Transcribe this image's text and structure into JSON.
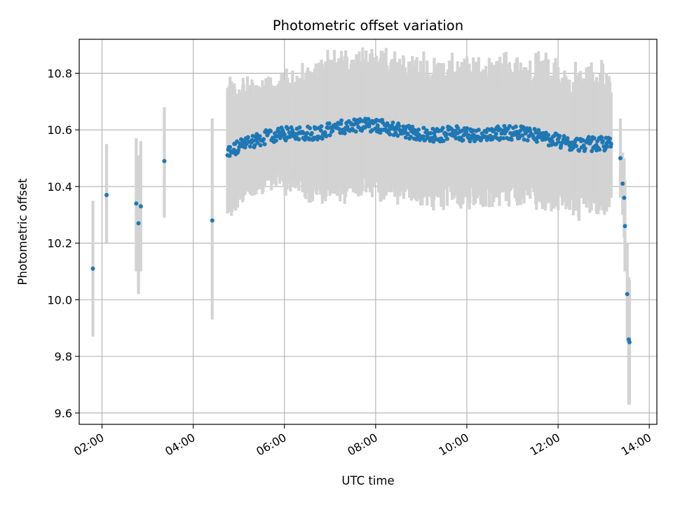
{
  "chart_data": {
    "type": "scatter",
    "title": "Photometric offset variation",
    "xlabel": "UTC time",
    "ylabel": "Photometric offset",
    "x_unit": "hours (UTC)",
    "xlim": [
      "01:30",
      "14:10"
    ],
    "ylim": [
      9.56,
      10.92
    ],
    "x_ticks": [
      "02:00",
      "04:00",
      "06:00",
      "08:00",
      "10:00",
      "12:00",
      "14:00"
    ],
    "y_ticks": [
      "9.6",
      "9.8",
      "10.0",
      "10.2",
      "10.4",
      "10.6",
      "10.8"
    ],
    "grid": true,
    "marker_color": "#1f77b4",
    "errorbar_color": "#d3d3d3",
    "trend_note": "dense sampling from ~04:45 to ~13:20; values rise from ~10.52 to ~10.62 near 07:45 and decline to ~10.55 near 13:00, then drop sharply to ~9.85 by 13:35",
    "sparse_points": [
      {
        "time": "01:48",
        "offset": 10.11,
        "low": 9.87,
        "high": 10.35
      },
      {
        "time": "02:06",
        "offset": 10.37,
        "low": 10.2,
        "high": 10.55
      },
      {
        "time": "02:45",
        "offset": 10.34,
        "low": 10.1,
        "high": 10.57
      },
      {
        "time": "02:48",
        "offset": 10.27,
        "low": 10.02,
        "high": 10.51
      },
      {
        "time": "02:51",
        "offset": 10.33,
        "low": 10.1,
        "high": 10.56
      },
      {
        "time": "03:22",
        "offset": 10.49,
        "low": 10.29,
        "high": 10.68
      },
      {
        "time": "04:25",
        "offset": 10.28,
        "low": 9.93,
        "high": 10.64
      }
    ],
    "dense_trend": [
      {
        "time": "04:45",
        "offset": 10.52,
        "spread": 0.19
      },
      {
        "time": "05:15",
        "offset": 10.56,
        "spread": 0.16
      },
      {
        "time": "05:45",
        "offset": 10.58,
        "spread": 0.15
      },
      {
        "time": "06:15",
        "offset": 10.59,
        "spread": 0.17
      },
      {
        "time": "06:45",
        "offset": 10.59,
        "spread": 0.19
      },
      {
        "time": "07:15",
        "offset": 10.61,
        "spread": 0.2
      },
      {
        "time": "07:45",
        "offset": 10.62,
        "spread": 0.21
      },
      {
        "time": "08:15",
        "offset": 10.61,
        "spread": 0.2
      },
      {
        "time": "08:45",
        "offset": 10.59,
        "spread": 0.2
      },
      {
        "time": "09:15",
        "offset": 10.58,
        "spread": 0.2
      },
      {
        "time": "09:45",
        "offset": 10.59,
        "spread": 0.2
      },
      {
        "time": "10:15",
        "offset": 10.58,
        "spread": 0.2
      },
      {
        "time": "10:45",
        "offset": 10.59,
        "spread": 0.2
      },
      {
        "time": "11:15",
        "offset": 10.59,
        "spread": 0.2
      },
      {
        "time": "11:45",
        "offset": 10.57,
        "spread": 0.21
      },
      {
        "time": "12:15",
        "offset": 10.55,
        "spread": 0.2
      },
      {
        "time": "12:45",
        "offset": 10.55,
        "spread": 0.2
      },
      {
        "time": "13:10",
        "offset": 10.55,
        "spread": 0.2
      }
    ],
    "tail_points": [
      {
        "time": "13:22",
        "offset": 10.5,
        "low": 10.36,
        "high": 10.64
      },
      {
        "time": "13:25",
        "offset": 10.41,
        "low": 10.3,
        "high": 10.52
      },
      {
        "time": "13:27",
        "offset": 10.36,
        "low": 10.22,
        "high": 10.5
      },
      {
        "time": "13:28",
        "offset": 10.26,
        "low": 10.1,
        "high": 10.42
      },
      {
        "time": "13:31",
        "offset": 10.02,
        "low": 9.85,
        "high": 10.2
      },
      {
        "time": "13:33",
        "offset": 9.86,
        "low": 9.63,
        "high": 10.08
      },
      {
        "time": "13:34",
        "offset": 9.85,
        "low": 9.63,
        "high": 10.07
      }
    ]
  }
}
